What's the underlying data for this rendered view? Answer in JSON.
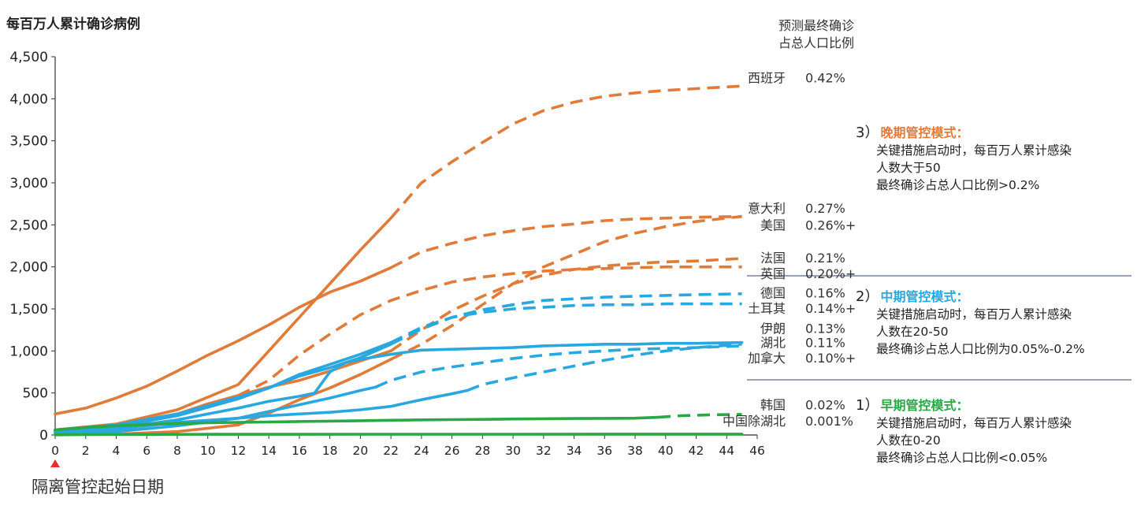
{
  "texts": {
    "ylabel": "每百万人累计确诊病例",
    "xlabel": "隔离管控起始日期",
    "header_line1": "预测最终确诊",
    "header_line2": "占总人口比例"
  },
  "modes": [
    {
      "num": "3）",
      "title": "晚期管控模式：",
      "color": "#e07b39",
      "lines": [
        "关键措施启动时，每百万人累计感染",
        "人数大于50",
        "最终确诊占总人口比例>0.2%"
      ]
    },
    {
      "num": "2）",
      "title": "中期管控模式：",
      "color": "#29a8e0",
      "lines": [
        "关键措施启动时，每百万人累计感染",
        "人数在20-50",
        "最终确诊占总人口比例为0.05%-0.2%"
      ]
    },
    {
      "num": "1）",
      "title": "早期管控模式：",
      "color": "#2aa846",
      "lines": [
        "关键措施启动时，每百万人累计感染",
        "人数在0-20",
        "最终确诊占总人口比例<0.05%"
      ]
    }
  ],
  "chart_data": {
    "type": "line",
    "xlim": [
      0,
      46
    ],
    "ylim": [
      0,
      4500
    ],
    "x_ticks": [
      0,
      2,
      4,
      6,
      8,
      10,
      12,
      14,
      16,
      18,
      20,
      22,
      24,
      26,
      28,
      30,
      32,
      34,
      36,
      38,
      40,
      42,
      44,
      46
    ],
    "y_ticks": [
      0,
      500,
      1000,
      1500,
      2000,
      2500,
      3000,
      3500,
      4000,
      4500
    ],
    "y_tick_labels": [
      "0",
      "500",
      "1,000",
      "1,500",
      "2,000",
      "2,500",
      "3,000",
      "3,500",
      "4,000",
      "4,500"
    ],
    "colors": {
      "late": "#e07b39",
      "mid": "#29a8e0",
      "early": "#2aa846",
      "marker": "#e53030",
      "axis": "#333333",
      "divider": "#5a6a80"
    },
    "series": [
      {
        "name": "西班牙",
        "pct": "0.42%",
        "group": "late",
        "label_y": 4250,
        "actual": [
          [
            0,
            60
          ],
          [
            4,
            130
          ],
          [
            8,
            300
          ],
          [
            12,
            600
          ],
          [
            16,
            1400
          ],
          [
            18,
            1800
          ],
          [
            20,
            2200
          ],
          [
            22,
            2580
          ]
        ],
        "forecast": [
          [
            22,
            2580
          ],
          [
            24,
            3000
          ],
          [
            26,
            3250
          ],
          [
            28,
            3480
          ],
          [
            30,
            3700
          ],
          [
            32,
            3860
          ],
          [
            34,
            3960
          ],
          [
            36,
            4030
          ],
          [
            38,
            4070
          ],
          [
            40,
            4100
          ],
          [
            42,
            4120
          ],
          [
            45,
            4150
          ]
        ]
      },
      {
        "name": "意大利",
        "pct": "0.27%",
        "group": "late",
        "label_y": 2700,
        "actual": [
          [
            0,
            250
          ],
          [
            2,
            320
          ],
          [
            4,
            440
          ],
          [
            6,
            580
          ],
          [
            8,
            760
          ],
          [
            10,
            950
          ],
          [
            12,
            1120
          ],
          [
            14,
            1310
          ],
          [
            16,
            1520
          ],
          [
            18,
            1700
          ],
          [
            20,
            1830
          ],
          [
            22,
            1990
          ]
        ],
        "forecast": [
          [
            22,
            1990
          ],
          [
            24,
            2180
          ],
          [
            26,
            2280
          ],
          [
            28,
            2370
          ],
          [
            30,
            2430
          ],
          [
            32,
            2480
          ],
          [
            34,
            2510
          ],
          [
            36,
            2550
          ],
          [
            38,
            2570
          ],
          [
            40,
            2580
          ],
          [
            42,
            2590
          ],
          [
            45,
            2600
          ]
        ]
      },
      {
        "name": "美国",
        "pct": "0.26%+",
        "group": "late",
        "label_y": 2500,
        "actual": [
          [
            0,
            0
          ],
          [
            4,
            10
          ],
          [
            8,
            40
          ],
          [
            12,
            120
          ],
          [
            14,
            260
          ],
          [
            16,
            420
          ],
          [
            18,
            560
          ],
          [
            20,
            720
          ],
          [
            22,
            900
          ]
        ],
        "forecast": [
          [
            22,
            900
          ],
          [
            24,
            1080
          ],
          [
            26,
            1300
          ],
          [
            28,
            1550
          ],
          [
            30,
            1800
          ],
          [
            32,
            2000
          ],
          [
            34,
            2150
          ],
          [
            36,
            2300
          ],
          [
            38,
            2400
          ],
          [
            40,
            2480
          ],
          [
            42,
            2540
          ],
          [
            45,
            2600
          ]
        ]
      },
      {
        "name": "法国",
        "pct": "0.21%",
        "group": "late",
        "label_y": 2110,
        "actual": [
          [
            0,
            50
          ],
          [
            4,
            120
          ],
          [
            8,
            250
          ],
          [
            10,
            370
          ],
          [
            12,
            470
          ],
          [
            14,
            570
          ],
          [
            16,
            650
          ],
          [
            18,
            760
          ],
          [
            20,
            880
          ],
          [
            22,
            1000
          ]
        ],
        "forecast": [
          [
            22,
            1000
          ],
          [
            24,
            1250
          ],
          [
            26,
            1480
          ],
          [
            28,
            1650
          ],
          [
            30,
            1800
          ],
          [
            32,
            1900
          ],
          [
            34,
            1970
          ],
          [
            36,
            2010
          ],
          [
            38,
            2040
          ],
          [
            40,
            2060
          ],
          [
            42,
            2070
          ],
          [
            45,
            2100
          ]
        ]
      },
      {
        "name": "英国",
        "pct": "0.20%+",
        "group": "late",
        "label_y": 1920,
        "actual": [
          [
            0,
            40
          ],
          [
            4,
            100
          ],
          [
            6,
            160
          ],
          [
            8,
            250
          ],
          [
            10,
            350
          ],
          [
            12,
            470
          ]
        ],
        "forecast": [
          [
            12,
            470
          ],
          [
            14,
            650
          ],
          [
            16,
            950
          ],
          [
            18,
            1200
          ],
          [
            20,
            1430
          ],
          [
            22,
            1600
          ],
          [
            24,
            1720
          ],
          [
            26,
            1820
          ],
          [
            28,
            1880
          ],
          [
            30,
            1920
          ],
          [
            32,
            1950
          ],
          [
            34,
            1970
          ],
          [
            36,
            1980
          ],
          [
            38,
            1990
          ],
          [
            40,
            2000
          ],
          [
            42,
            2000
          ],
          [
            45,
            2000
          ]
        ]
      },
      {
        "name": "德国",
        "pct": "0.16%",
        "group": "mid",
        "label_y": 1690,
        "actual": [
          [
            0,
            60
          ],
          [
            4,
            120
          ],
          [
            8,
            250
          ],
          [
            10,
            350
          ],
          [
            12,
            450
          ],
          [
            14,
            560
          ],
          [
            16,
            700
          ],
          [
            18,
            800
          ],
          [
            20,
            920
          ],
          [
            22,
            1080
          ]
        ],
        "forecast": [
          [
            22,
            1080
          ],
          [
            24,
            1260
          ],
          [
            26,
            1400
          ],
          [
            28,
            1490
          ],
          [
            30,
            1550
          ],
          [
            32,
            1600
          ],
          [
            34,
            1620
          ],
          [
            36,
            1640
          ],
          [
            38,
            1650
          ],
          [
            40,
            1660
          ],
          [
            42,
            1670
          ],
          [
            45,
            1680
          ]
        ]
      },
      {
        "name": "土耳其",
        "pct": "0.14%+",
        "group": "mid",
        "label_y": 1510,
        "actual": [
          [
            0,
            30
          ],
          [
            4,
            100
          ],
          [
            8,
            230
          ],
          [
            12,
            430
          ],
          [
            14,
            560
          ],
          [
            16,
            720
          ],
          [
            17,
            780
          ],
          [
            18,
            840
          ],
          [
            20,
            960
          ],
          [
            22,
            1100
          ]
        ],
        "forecast": [
          [
            22,
            1100
          ],
          [
            24,
            1280
          ],
          [
            26,
            1400
          ],
          [
            28,
            1460
          ],
          [
            30,
            1500
          ],
          [
            32,
            1520
          ],
          [
            34,
            1540
          ],
          [
            36,
            1550
          ],
          [
            38,
            1550
          ],
          [
            40,
            1560
          ],
          [
            42,
            1560
          ],
          [
            45,
            1560
          ]
        ]
      },
      {
        "name": "伊朗",
        "pct": "0.13%",
        "group": "mid",
        "label_y": 1270,
        "actual": [
          [
            0,
            20
          ],
          [
            4,
            80
          ],
          [
            8,
            180
          ],
          [
            12,
            320
          ],
          [
            14,
            400
          ],
          [
            16,
            460
          ],
          [
            17,
            500
          ],
          [
            18,
            750
          ],
          [
            19,
            860
          ],
          [
            20,
            900
          ],
          [
            22,
            960
          ],
          [
            24,
            1010
          ],
          [
            26,
            1020
          ],
          [
            28,
            1030
          ],
          [
            30,
            1040
          ],
          [
            32,
            1060
          ],
          [
            34,
            1070
          ],
          [
            36,
            1080
          ],
          [
            38,
            1080
          ],
          [
            40,
            1090
          ],
          [
            42,
            1090
          ],
          [
            45,
            1100
          ]
        ],
        "forecast": []
      },
      {
        "name": "湖北",
        "pct": "0.11%",
        "group": "mid",
        "label_y": 1100,
        "actual": [
          [
            0,
            20
          ],
          [
            4,
            70
          ],
          [
            8,
            150
          ],
          [
            12,
            200
          ],
          [
            14,
            230
          ],
          [
            16,
            250
          ],
          [
            18,
            270
          ],
          [
            20,
            300
          ],
          [
            22,
            340
          ],
          [
            24,
            420
          ],
          [
            26,
            490
          ],
          [
            27,
            530
          ]
        ],
        "forecast": [
          [
            27,
            530
          ],
          [
            28,
            600
          ],
          [
            30,
            680
          ],
          [
            32,
            750
          ],
          [
            34,
            820
          ],
          [
            36,
            890
          ],
          [
            38,
            950
          ],
          [
            40,
            1000
          ],
          [
            42,
            1040
          ],
          [
            45,
            1080
          ]
        ]
      },
      {
        "name": "加拿大",
        "pct": "0.10%+",
        "group": "mid",
        "label_y": 920,
        "actual": [
          [
            0,
            10
          ],
          [
            4,
            40
          ],
          [
            8,
            110
          ],
          [
            12,
            200
          ],
          [
            14,
            280
          ],
          [
            16,
            360
          ],
          [
            18,
            440
          ],
          [
            20,
            530
          ],
          [
            21,
            570
          ]
        ],
        "forecast": [
          [
            21,
            570
          ],
          [
            22,
            650
          ],
          [
            24,
            750
          ],
          [
            26,
            810
          ],
          [
            28,
            860
          ],
          [
            30,
            910
          ],
          [
            32,
            950
          ],
          [
            34,
            980
          ],
          [
            36,
            1000
          ],
          [
            38,
            1020
          ],
          [
            40,
            1030
          ],
          [
            42,
            1040
          ],
          [
            45,
            1060
          ]
        ]
      },
      {
        "name": "韩国",
        "pct": "0.02%",
        "group": "early",
        "label_y": 360,
        "actual": [
          [
            0,
            60
          ],
          [
            2,
            90
          ],
          [
            4,
            110
          ],
          [
            6,
            125
          ],
          [
            8,
            135
          ],
          [
            10,
            145
          ],
          [
            12,
            150
          ],
          [
            14,
            155
          ],
          [
            16,
            160
          ],
          [
            18,
            165
          ],
          [
            20,
            170
          ],
          [
            22,
            175
          ],
          [
            24,
            180
          ],
          [
            26,
            183
          ],
          [
            28,
            186
          ],
          [
            30,
            190
          ],
          [
            32,
            193
          ],
          [
            34,
            196
          ],
          [
            36,
            198
          ],
          [
            38,
            200
          ],
          [
            39.5,
            210
          ]
        ],
        "forecast": [
          [
            39.5,
            210
          ],
          [
            41,
            230
          ],
          [
            43,
            240
          ],
          [
            45,
            245
          ]
        ]
      },
      {
        "name": "中国除湖北",
        "pct": "0.001%",
        "group": "early",
        "label_y": 170,
        "actual": [
          [
            0,
            5
          ],
          [
            10,
            8
          ],
          [
            20,
            9
          ],
          [
            30,
            9
          ],
          [
            40,
            10
          ],
          [
            45,
            10
          ]
        ],
        "forecast": []
      }
    ]
  }
}
